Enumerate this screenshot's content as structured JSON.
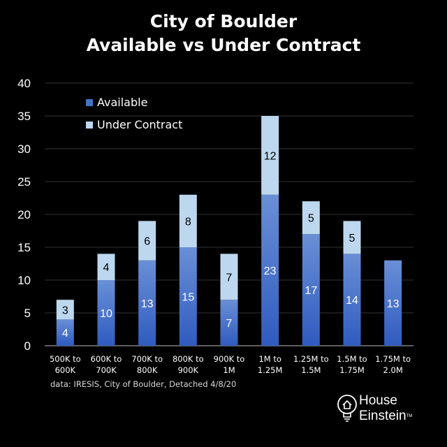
{
  "chart_data": {
    "type": "bar",
    "stacked": true,
    "title": "City of Boulder",
    "subtitle": "Available vs Under Contract",
    "categories": [
      [
        "500K to",
        "600K"
      ],
      [
        "600K to",
        "700K"
      ],
      [
        "700K to",
        "800K"
      ],
      [
        "800K to",
        "900K"
      ],
      [
        "900K to",
        "1M"
      ],
      [
        "1M to",
        "1.25M"
      ],
      [
        "1.25M to",
        "1.5M"
      ],
      [
        "1.5M to",
        "1.75M"
      ],
      [
        "1.75M to",
        "2.0M"
      ]
    ],
    "series": [
      {
        "name": "Available",
        "values": [
          4,
          10,
          13,
          15,
          7,
          23,
          17,
          14,
          13
        ],
        "color": "#4472c4"
      },
      {
        "name": "Under Contract",
        "values": [
          3,
          4,
          6,
          8,
          7,
          12,
          5,
          5,
          0
        ],
        "color": "#bdd7ee"
      }
    ],
    "ylim": [
      0,
      40
    ],
    "yticks": [
      0,
      5,
      10,
      15,
      20,
      25,
      30,
      35,
      40
    ],
    "grid": true,
    "legend": "top-left",
    "data_labels": true
  },
  "source": "data: IRESIS, City of Boulder, Detached 4/8/20",
  "logo": {
    "line1": "House",
    "line2": "Einstein",
    "tm": "TM"
  }
}
